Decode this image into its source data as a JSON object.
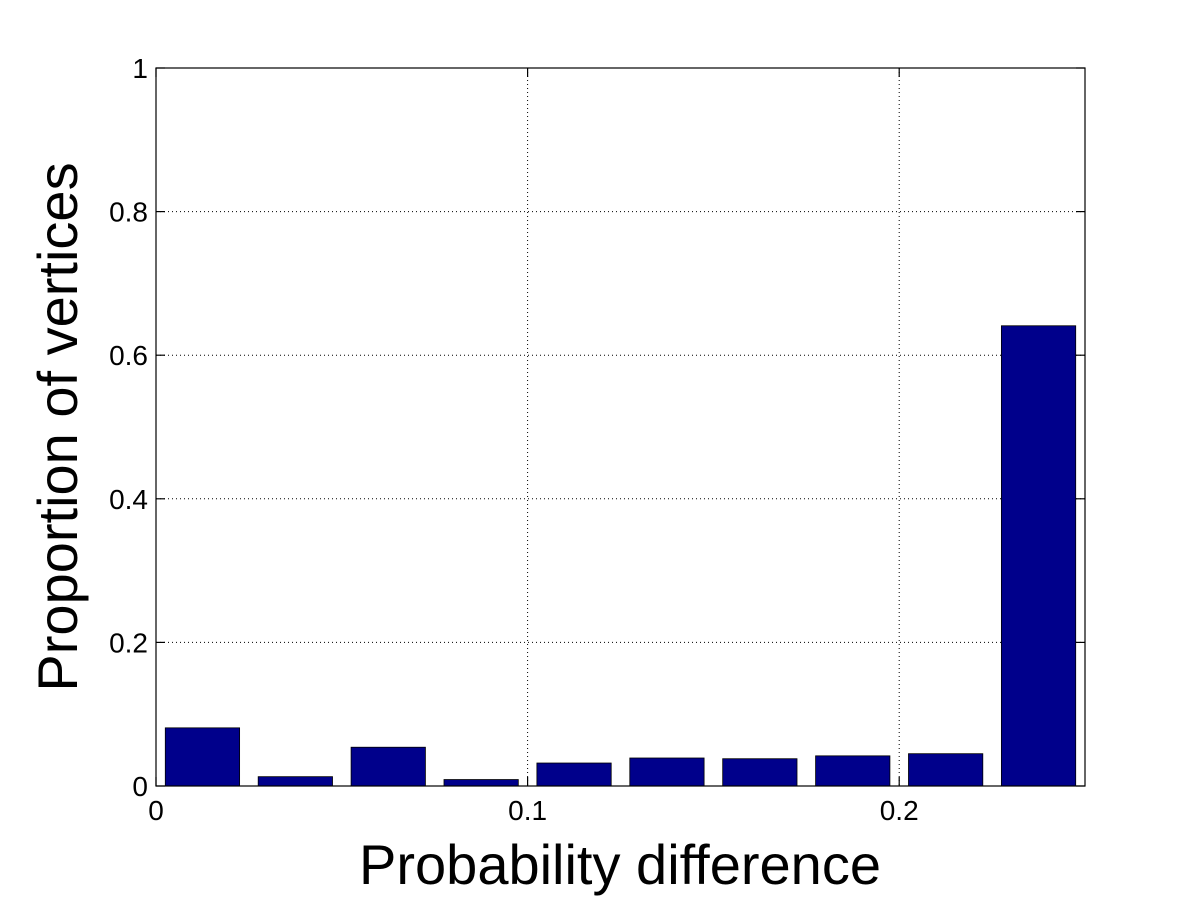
{
  "chart_data": {
    "type": "bar",
    "xlabel": "Probability difference",
    "ylabel": "Proportion of vertices",
    "xlim": [
      0,
      0.25
    ],
    "ylim": [
      0,
      1
    ],
    "grid": true,
    "bar_color": "#00008b",
    "xticks": [
      0,
      0.1,
      0.2
    ],
    "xtick_labels": [
      "0",
      "0.1",
      "0.2"
    ],
    "yticks": [
      0,
      0.2,
      0.4,
      0.6,
      0.8,
      1
    ],
    "ytick_labels": [
      "0",
      "0.2",
      "0.4",
      "0.6",
      "0.8",
      "1"
    ],
    "bar_width": 0.02,
    "x": [
      0.0125,
      0.0375,
      0.0625,
      0.0875,
      0.1125,
      0.1375,
      0.1625,
      0.1875,
      0.2125,
      0.2375
    ],
    "values": [
      0.081,
      0.013,
      0.054,
      0.009,
      0.032,
      0.039,
      0.038,
      0.042,
      0.045,
      0.641
    ]
  }
}
